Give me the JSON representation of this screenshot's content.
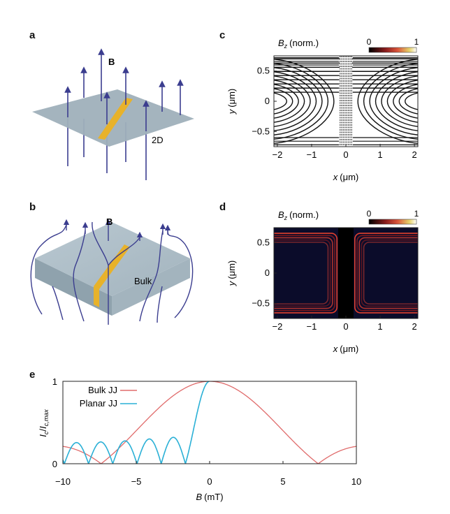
{
  "panels": {
    "a": {
      "letter": "a",
      "field_label": "B",
      "plane_label": "2D"
    },
    "b": {
      "letter": "b",
      "field_label": "B",
      "block_label": "Bulk"
    },
    "c": {
      "letter": "c",
      "title_symbol": "B",
      "title_sub": "z",
      "title_norm": "(norm.)",
      "colorbar_min": "0",
      "colorbar_max": "1"
    },
    "d": {
      "letter": "d",
      "title_symbol": "B",
      "title_sub": "z",
      "title_norm": "(norm.)",
      "colorbar_min": "0",
      "colorbar_max": "1"
    },
    "e": {
      "letter": "e"
    }
  },
  "colors": {
    "bulk": "#e06b6b",
    "planar": "#2ab0d6",
    "stripe": "#e8b22a",
    "plane": "#9fb0bb",
    "arrow": "#3b3d8f"
  },
  "chart_data": [
    {
      "type": "contour",
      "panel": "c",
      "xlabel_symbol": "x",
      "xlabel_unit": "(μm)",
      "ylabel_symbol": "y",
      "ylabel_unit": "(μm)",
      "xlim": [
        -2.1,
        2.1
      ],
      "ylim": [
        -0.75,
        0.75
      ],
      "xticks": [
        "−2",
        "−1",
        "0",
        "1",
        "2"
      ],
      "yticks": [
        "0.5",
        "0",
        "−0.5"
      ]
    },
    {
      "type": "heatmap",
      "panel": "d",
      "xlabel_symbol": "x",
      "xlabel_unit": "(μm)",
      "ylabel_symbol": "y",
      "ylabel_unit": "(μm)",
      "xlim": [
        -2.1,
        2.1
      ],
      "ylim": [
        -0.75,
        0.75
      ],
      "xticks": [
        "−2",
        "−1",
        "0",
        "1",
        "2"
      ],
      "yticks": [
        "0.5",
        "0",
        "−0.5"
      ]
    },
    {
      "type": "line",
      "panel": "e",
      "xlabel_symbol": "B",
      "xlabel_unit": "(mT)",
      "ylabel_main": "I",
      "ylabel_sub": "c",
      "ylabel_main2": "I",
      "ylabel_sub2": "c,max",
      "xlim": [
        -10,
        10
      ],
      "ylim": [
        0,
        1
      ],
      "xticks": [
        "−10",
        "−5",
        "0",
        "5",
        "10"
      ],
      "yticks": [
        "1",
        "0"
      ],
      "legend_position": "top-left",
      "series": [
        {
          "name": "Bulk JJ",
          "model": "gaussian",
          "sigma": 4.5,
          "color_key": "bulk"
        },
        {
          "name": "Planar JJ",
          "model": "abs_sinc",
          "period_mT": 1.65,
          "color_key": "planar"
        }
      ]
    }
  ]
}
